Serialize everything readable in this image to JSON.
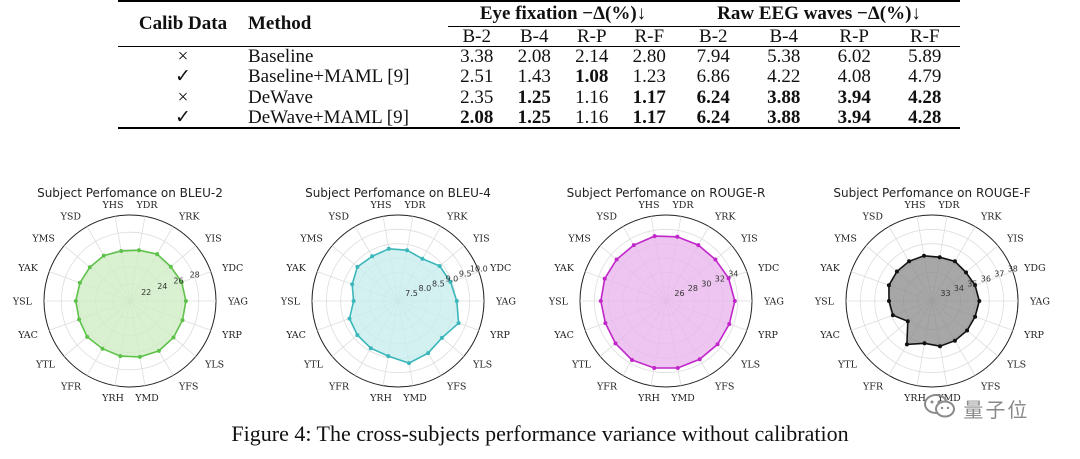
{
  "table": {
    "col_calib": "Calib Data",
    "col_method": "Method",
    "group_eye": "Eye fixation −Δ(%)↓",
    "group_eeg": "Raw EEG waves −Δ(%)↓",
    "sub_headers": [
      "B-2",
      "B-4",
      "R-P",
      "R-F",
      "B-2",
      "B-4",
      "R-P",
      "R-F"
    ],
    "rows": [
      {
        "calib": "×",
        "method": "Baseline",
        "values": [
          "3.38",
          "2.08",
          "2.14",
          "2.80",
          "7.94",
          "5.38",
          "6.02",
          "5.89"
        ],
        "bold": [
          false,
          false,
          false,
          false,
          false,
          false,
          false,
          false
        ]
      },
      {
        "calib": "✓",
        "method": "Baseline+MAML [9]",
        "values": [
          "2.51",
          "1.43",
          "1.08",
          "1.23",
          "6.86",
          "4.22",
          "4.08",
          "4.79"
        ],
        "bold": [
          false,
          false,
          true,
          false,
          false,
          false,
          false,
          false
        ]
      },
      {
        "calib": "×",
        "method": "DeWave",
        "values": [
          "2.35",
          "1.25",
          "1.16",
          "1.17",
          "6.24",
          "3.88",
          "3.94",
          "4.28"
        ],
        "bold": [
          false,
          true,
          false,
          true,
          true,
          true,
          true,
          true
        ]
      },
      {
        "calib": "✓",
        "method": "DeWave+MAML [9]",
        "values": [
          "2.08",
          "1.25",
          "1.16",
          "1.17",
          "6.24",
          "3.88",
          "3.94",
          "4.28"
        ],
        "bold": [
          true,
          true,
          false,
          true,
          true,
          true,
          true,
          true
        ]
      }
    ]
  },
  "chart_data": [
    {
      "type": "radar",
      "title": "Subject Perfomance on BLEU-2",
      "axes": [
        "YAG",
        "YDC",
        "YIS",
        "YRK",
        "YDR",
        "YHS",
        "YSD",
        "YMS",
        "YAK",
        "YSL",
        "YAC",
        "YTL",
        "YFR",
        "YRH",
        "YMD",
        "YFS",
        "YLS",
        "YRP"
      ],
      "rlabels": [
        "22",
        "24",
        "26",
        "28"
      ],
      "rticks": [
        22,
        24,
        26,
        28
      ],
      "rlim": [
        20,
        30
      ],
      "values": [
        26.5,
        26.4,
        26.2,
        26.3,
        26.0,
        25.9,
        26.1,
        26.1,
        26.2,
        26.3,
        26.3,
        26.5,
        26.4,
        26.5,
        26.6,
        26.7,
        26.6,
        26.5
      ],
      "color": "#5ec24a",
      "fill": "#cfeec5"
    },
    {
      "type": "radar",
      "title": "Subject Perfomance on BLEU-4",
      "axes": [
        "YAG",
        "YDC",
        "YIS",
        "YRK",
        "YDR",
        "YHS",
        "YSD",
        "YMS",
        "YAK",
        "YSL",
        "YAC",
        "YTL",
        "YFR",
        "YRH",
        "YMD",
        "YFS",
        "YLS",
        "YRP"
      ],
      "rlabels": [
        "7.5",
        "8.0",
        "8.5",
        "9.0",
        "9.5",
        "10.0"
      ],
      "rticks": [
        7.5,
        8.0,
        8.5,
        9.0,
        9.5,
        10.0
      ],
      "rlim": [
        7.0,
        10.0
      ],
      "values": [
        9.05,
        8.95,
        8.9,
        8.7,
        8.8,
        8.85,
        8.8,
        8.85,
        8.7,
        8.55,
        8.8,
        8.85,
        8.9,
        8.95,
        9.2,
        9.1,
        9.0,
        9.25
      ],
      "color": "#3bb7bb",
      "fill": "#c8eeee"
    },
    {
      "type": "radar",
      "title": "Subject Perfomance on ROUGE-R",
      "axes": [
        "YAG",
        "YDC",
        "YIS",
        "YRK",
        "YDR",
        "YHS",
        "YSD",
        "YMS",
        "YAK",
        "YSL",
        "YAC",
        "YTL",
        "YFR",
        "YRH",
        "YMD",
        "YFS",
        "YLS",
        "YRP"
      ],
      "rlabels": [
        "26",
        "28",
        "30",
        "32",
        "34"
      ],
      "rticks": [
        26,
        28,
        30,
        32,
        34
      ],
      "rlim": [
        24,
        36
      ],
      "values": [
        33.6,
        33.3,
        33.0,
        33.0,
        33.1,
        33.2,
        33.0,
        33.0,
        33.1,
        33.1,
        33.0,
        33.2,
        33.5,
        33.5,
        33.5,
        33.4,
        33.4,
        33.4
      ],
      "color": "#c026c9",
      "fill": "#e8b6ec"
    },
    {
      "type": "radar",
      "title": "Subject Perfomance on ROUGE-F",
      "axes": [
        "YAG",
        "YDG",
        "YIS",
        "YRK",
        "YDR",
        "YHS",
        "YSD",
        "YMS",
        "YAK",
        "YSL",
        "YAC",
        "YTL",
        "YFR",
        "YRH",
        "YMD",
        "YFS",
        "YLS",
        "YRP"
      ],
      "rlabels": [
        "33",
        "34",
        "35",
        "36",
        "37",
        "38"
      ],
      "rticks": [
        33,
        34,
        35,
        36,
        37,
        38
      ],
      "rlim": [
        32,
        38
      ],
      "values": [
        35.3,
        35.2,
        35.1,
        35.2,
        35.1,
        35.2,
        35.2,
        35.2,
        35.2,
        35.0,
        34.9,
        34.2,
        35.5,
        35.0,
        35.2,
        35.2,
        35.2,
        35.2
      ],
      "color": "#111111",
      "fill": "#8a8a8a"
    }
  ],
  "caption": "Figure 4: The cross-subjects performance variance without calibration",
  "watermark": "量子位"
}
